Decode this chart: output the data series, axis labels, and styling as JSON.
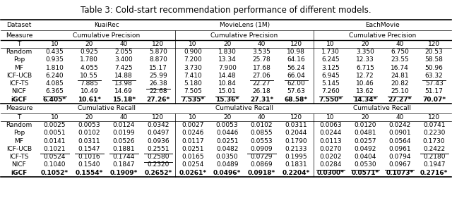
{
  "title": "Table 3: Cold-start recommendation performance of different models.",
  "datasets": [
    "KuaiRec",
    "MovieLens (1M)",
    "EachMovie"
  ],
  "measure_top": "Cumulative Precision",
  "measure_bottom": "Cumulative Recall",
  "T_values": [
    "10",
    "20",
    "40",
    "120"
  ],
  "models": [
    "Random",
    "Pop",
    "MF",
    "ICF-UCB",
    "ICF-TS",
    "NICF",
    "iGCF"
  ],
  "precision_kuairec": [
    [
      "0.435",
      "0.925",
      "2.055",
      "5.870"
    ],
    [
      "0.935",
      "1.780",
      "3.400",
      "8.870"
    ],
    [
      "1.810",
      "4.055",
      "7.425",
      "15.17"
    ],
    [
      "6.240",
      "10.55",
      "14.88",
      "25.99"
    ],
    [
      "4.085",
      "7.885",
      "13.98",
      "26.38"
    ],
    [
      "6.365",
      "10.49",
      "14.69",
      "22.68"
    ],
    [
      "6.405*",
      "10.61*",
      "15.18*",
      "27.26*"
    ]
  ],
  "precision_movielens": [
    [
      "0.900",
      "1.830",
      "3.535",
      "10.98"
    ],
    [
      "7.200",
      "13.34",
      "25.78",
      "64.16"
    ],
    [
      "3.730",
      "7.900",
      "17.68",
      "56.24"
    ],
    [
      "7.410",
      "14.48",
      "27.06",
      "66.04"
    ],
    [
      "5.180",
      "10.84",
      "22.27",
      "62.00"
    ],
    [
      "7.505",
      "15.01",
      "26.18",
      "57.63"
    ],
    [
      "7.535*",
      "15.36*",
      "27.31*",
      "68.58*"
    ]
  ],
  "precision_eachmovie": [
    [
      "1.730",
      "3.350",
      "6.750",
      "20.53"
    ],
    [
      "6.245",
      "12.33",
      "23.55",
      "58.58"
    ],
    [
      "3.125",
      "6.715",
      "16.74",
      "50.96"
    ],
    [
      "6.945",
      "12.72",
      "24.81",
      "63.32"
    ],
    [
      "5.145",
      "10.46",
      "20.82",
      "57.43"
    ],
    [
      "7.260",
      "13.62",
      "25.10",
      "51.17"
    ],
    [
      "7.550*",
      "14.34*",
      "27.27*",
      "70.07*"
    ]
  ],
  "recall_kuairec": [
    [
      "0.0025",
      "0.0053",
      "0.0124",
      "0.0342"
    ],
    [
      "0.0051",
      "0.0102",
      "0.0199",
      "0.0497"
    ],
    [
      "0.0141",
      "0.0311",
      "0.0526",
      "0.0936"
    ],
    [
      "0.1021",
      "0.1547",
      "0.1881",
      "0.2551"
    ],
    [
      "0.0524",
      "0.1016",
      "0.1744",
      "0.2580"
    ],
    [
      "0.1040",
      "0.1540",
      "0.1847",
      "0.2320"
    ],
    [
      "0.1052*",
      "0.1554*",
      "0.1909*",
      "0.2652*"
    ]
  ],
  "recall_movielens": [
    [
      "0.0027",
      "0.0053",
      "0.0102",
      "0.0311"
    ],
    [
      "0.0246",
      "0.0446",
      "0.0855",
      "0.2044"
    ],
    [
      "0.0117",
      "0.0251",
      "0.0553",
      "0.1790"
    ],
    [
      "0.0251",
      "0.0482",
      "0.0909",
      "0.2133"
    ],
    [
      "0.0165",
      "0.0350",
      "0.0729",
      "0.1995"
    ],
    [
      "0.0254",
      "0.0489",
      "0.0869",
      "0.1831"
    ],
    [
      "0.0261*",
      "0.0496*",
      "0.0918*",
      "0.2204*"
    ]
  ],
  "recall_eachmovie": [
    [
      "0.0063",
      "0.0120",
      "0.0242",
      "0.0741"
    ],
    [
      "0.0244",
      "0.0481",
      "0.0901",
      "0.2230"
    ],
    [
      "0.0113",
      "0.0257",
      "0.0564",
      "0.1730"
    ],
    [
      "0.0270",
      "0.0492",
      "0.0961",
      "0.2422"
    ],
    [
      "0.0202",
      "0.0404",
      "0.0794",
      "0.2180"
    ],
    [
      "0.0284",
      "0.0530",
      "0.0967",
      "0.1947"
    ],
    [
      "0.0300*",
      "0.0571*",
      "0.1073*",
      "0.2716*"
    ]
  ],
  "underline_precision_kuairec": [
    [
      false,
      false,
      false,
      false
    ],
    [
      false,
      false,
      false,
      false
    ],
    [
      false,
      false,
      false,
      false
    ],
    [
      false,
      true,
      true,
      false
    ],
    [
      false,
      false,
      false,
      true
    ],
    [
      true,
      false,
      false,
      false
    ],
    [
      true,
      true,
      true,
      true
    ]
  ],
  "underline_precision_movielens": [
    [
      false,
      false,
      false,
      false
    ],
    [
      false,
      false,
      false,
      false
    ],
    [
      false,
      false,
      false,
      false
    ],
    [
      false,
      false,
      true,
      true
    ],
    [
      false,
      false,
      false,
      false
    ],
    [
      true,
      true,
      false,
      false
    ],
    [
      true,
      true,
      true,
      true
    ]
  ],
  "underline_precision_eachmovie": [
    [
      false,
      false,
      false,
      false
    ],
    [
      false,
      false,
      false,
      false
    ],
    [
      false,
      false,
      false,
      false
    ],
    [
      false,
      false,
      false,
      true
    ],
    [
      false,
      false,
      false,
      false
    ],
    [
      true,
      true,
      true,
      false
    ],
    [
      true,
      true,
      true,
      true
    ]
  ],
  "underline_recall_kuairec": [
    [
      false,
      false,
      false,
      false
    ],
    [
      false,
      false,
      false,
      false
    ],
    [
      false,
      false,
      false,
      false
    ],
    [
      true,
      true,
      true,
      true
    ],
    [
      false,
      false,
      false,
      true
    ],
    [
      false,
      false,
      false,
      false
    ],
    [
      true,
      true,
      true,
      true
    ]
  ],
  "underline_recall_movielens": [
    [
      false,
      false,
      false,
      false
    ],
    [
      false,
      false,
      false,
      false
    ],
    [
      false,
      false,
      false,
      false
    ],
    [
      false,
      false,
      true,
      false
    ],
    [
      false,
      false,
      false,
      false
    ],
    [
      false,
      false,
      false,
      false
    ],
    [
      true,
      true,
      true,
      true
    ]
  ],
  "underline_recall_eachmovie": [
    [
      false,
      false,
      false,
      false
    ],
    [
      false,
      false,
      false,
      false
    ],
    [
      false,
      false,
      false,
      false
    ],
    [
      false,
      false,
      false,
      true
    ],
    [
      false,
      false,
      false,
      false
    ],
    [
      true,
      true,
      true,
      false
    ],
    [
      true,
      true,
      true,
      true
    ]
  ],
  "bold_rows": [
    6
  ],
  "font_size": 6.5,
  "title_font_size": 8.5
}
